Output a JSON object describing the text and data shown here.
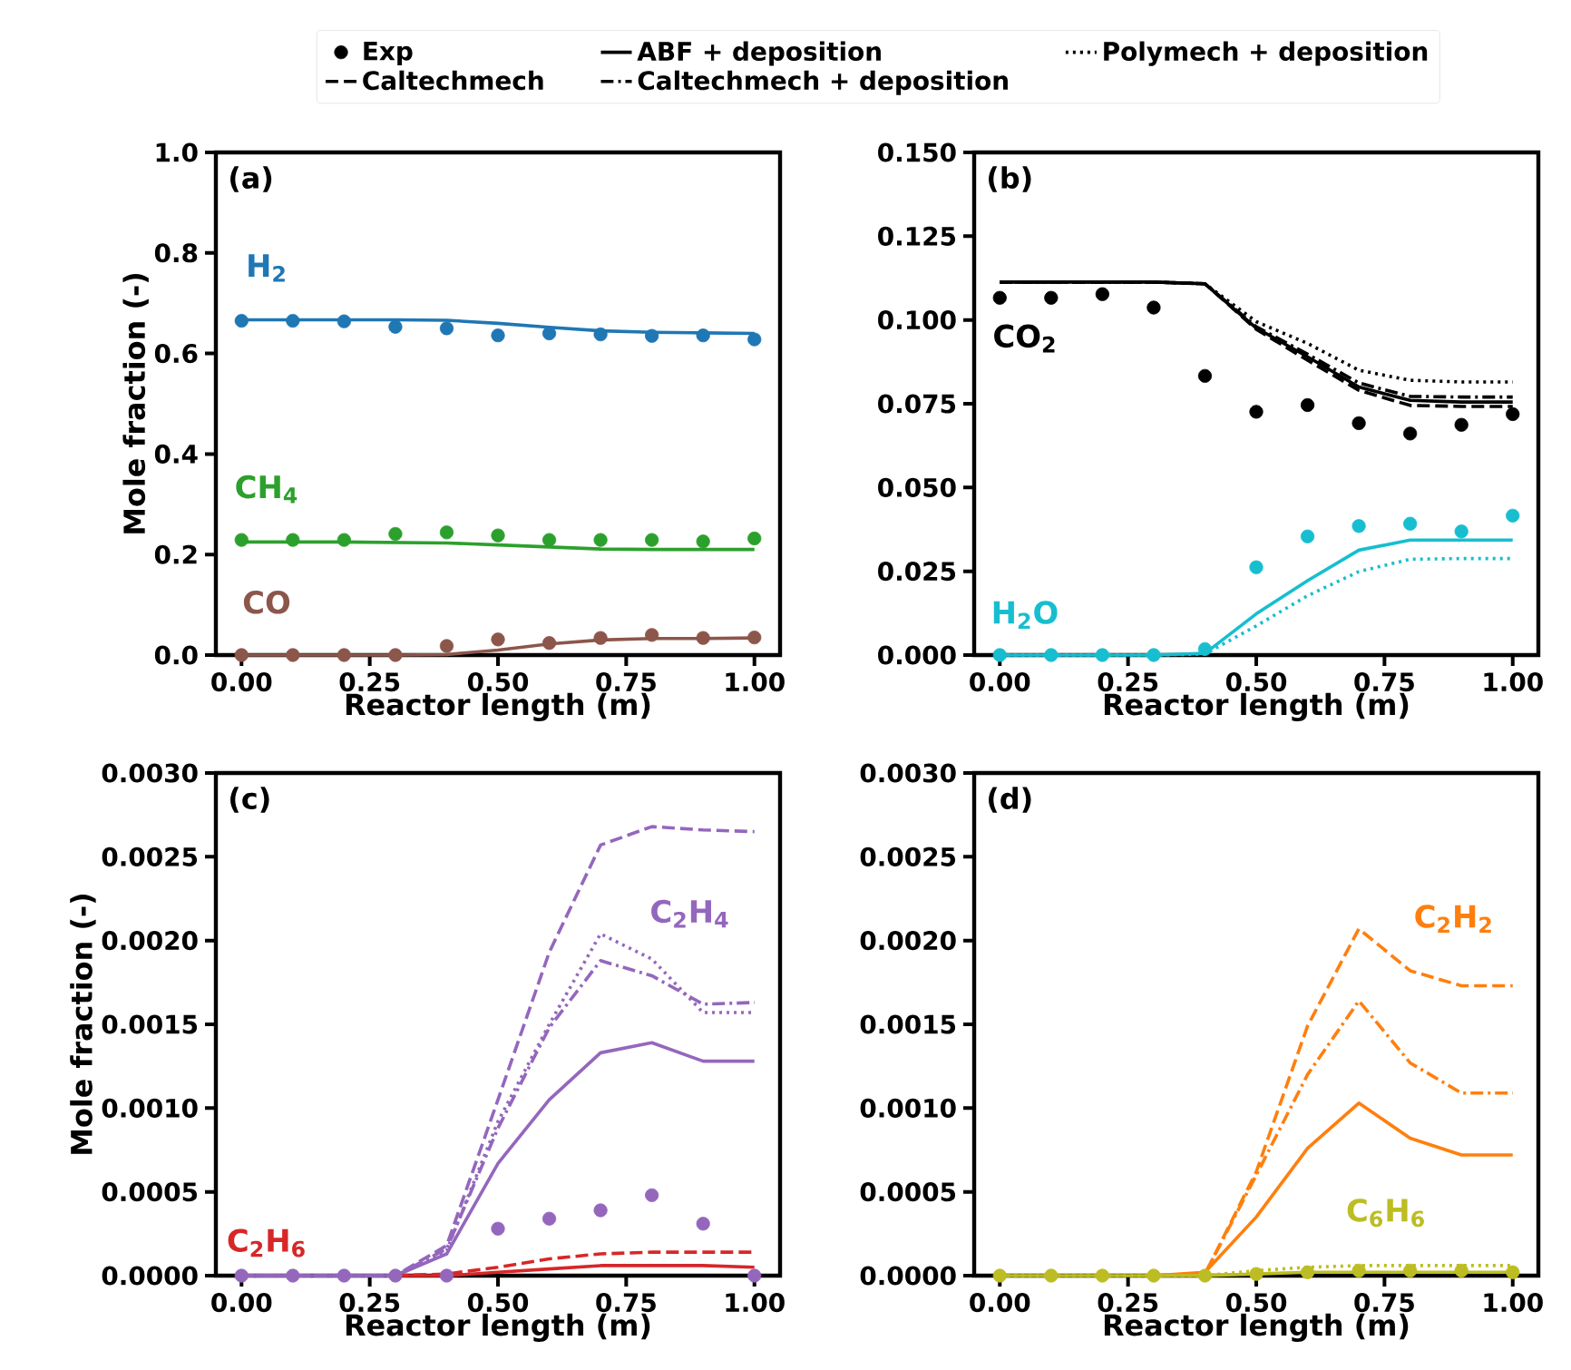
{
  "chart_data": [
    {
      "type": "line",
      "xlabel": "Reactor length (m)",
      "ylabel": "Mole fraction (-)",
      "x": [
        0,
        0.1,
        0.2,
        0.3,
        0.4,
        0.5,
        0.6,
        0.7,
        0.8,
        0.9,
        1.0
      ],
      "xlim": [
        -0.05,
        1.05
      ],
      "ylim": [
        0,
        1.0
      ],
      "xticks": [
        {
          "value": 0,
          "label": "0.00"
        },
        {
          "value": 0.25,
          "label": "0.25"
        },
        {
          "value": 0.5,
          "label": "0.50"
        },
        {
          "value": 0.75,
          "label": "0.75"
        },
        {
          "value": 1.0,
          "label": "1.00"
        }
      ],
      "yticks": [
        {
          "value": 0,
          "label": "0.0"
        },
        {
          "value": 0.2,
          "label": "0.2"
        },
        {
          "value": 0.4,
          "label": "0.4"
        },
        {
          "value": 0.6,
          "label": "0.6"
        },
        {
          "value": 0.8,
          "label": "0.8"
        },
        {
          "value": 1.0,
          "label": "1.0"
        }
      ],
      "annotations": [
        "(a)",
        "H$_{2}$",
        "CH$_{4}$",
        "CO"
      ],
      "series": [
        {
          "type": "scatter",
          "color": "#1f77b4",
          "values": [
            0.665,
            0.665,
            0.664,
            0.653,
            0.65,
            0.636,
            0.64,
            0.638,
            0.635,
            0.636,
            0.628
          ]
        },
        {
          "line_style": "solid",
          "color": "#1f77b4",
          "values": [
            0.667,
            0.667,
            0.667,
            0.667,
            0.666,
            0.66,
            0.652,
            0.645,
            0.642,
            0.641,
            0.64
          ]
        },
        {
          "type": "scatter",
          "color": "#2ca02c",
          "values": [
            0.229,
            0.229,
            0.229,
            0.241,
            0.244,
            0.238,
            0.229,
            0.229,
            0.229,
            0.226,
            0.232
          ]
        },
        {
          "line_style": "solid",
          "color": "#2ca02c",
          "values": [
            0.225,
            0.225,
            0.225,
            0.224,
            0.223,
            0.219,
            0.215,
            0.211,
            0.21,
            0.21,
            0.21
          ]
        },
        {
          "type": "scatter",
          "color": "#8c564b",
          "values": [
            0,
            0,
            0,
            0,
            0.018,
            0.031,
            0.024,
            0.034,
            0.04,
            0.034,
            0.035
          ]
        },
        {
          "line_style": "solid",
          "color": "#8c564b",
          "values": [
            0,
            0,
            0,
            0,
            0.001,
            0.01,
            0.022,
            0.03,
            0.033,
            0.033,
            0.034
          ]
        }
      ]
    },
    {
      "type": "line",
      "xlabel": "Reactor length (m)",
      "legend": "top",
      "x": [
        0,
        0.1,
        0.2,
        0.3,
        0.4,
        0.5,
        0.6,
        0.7,
        0.8,
        0.9,
        1.0
      ],
      "xlim": [
        -0.05,
        1.05
      ],
      "ylim": [
        0,
        0.15
      ],
      "xticks": [
        {
          "value": 0,
          "label": "0.00"
        },
        {
          "value": 0.25,
          "label": "0.25"
        },
        {
          "value": 0.5,
          "label": "0.50"
        },
        {
          "value": 0.75,
          "label": "0.75"
        },
        {
          "value": 1.0,
          "label": "1.00"
        }
      ],
      "yticks": [
        {
          "value": 0,
          "label": "0.000"
        },
        {
          "value": 0.025,
          "label": "0.025"
        },
        {
          "value": 0.05,
          "label": "0.050"
        },
        {
          "value": 0.075,
          "label": "0.075"
        },
        {
          "value": 0.1,
          "label": "0.100"
        },
        {
          "value": 0.125,
          "label": "0.125"
        },
        {
          "value": 0.15,
          "label": "0.150"
        }
      ],
      "annotations": [
        "(b)",
        "CO$_{2}$",
        "H$_{2}$O"
      ],
      "series": [
        {
          "name": "Exp",
          "type": "scatter",
          "color": "#000000",
          "values": [
            0.1066,
            0.1066,
            0.1077,
            0.1037,
            0.0833,
            0.0726,
            0.0746,
            0.0692,
            0.0661,
            0.0687,
            0.0719
          ]
        },
        {
          "name": "ABF + deposition",
          "line_style": "solid",
          "color": "#000000",
          "values": [
            0.1113,
            0.1113,
            0.1113,
            0.1113,
            0.1108,
            0.0976,
            0.089,
            0.08,
            0.076,
            0.0755,
            0.0755
          ]
        },
        {
          "name": "Polymech + deposition",
          "line_style": "dotted",
          "color": "#000000",
          "values": [
            0.1113,
            0.1113,
            0.1113,
            0.1113,
            0.1108,
            0.0995,
            0.093,
            0.085,
            0.082,
            0.0815,
            0.0815
          ]
        },
        {
          "name": "Caltechmech",
          "line_style": "dashed",
          "color": "#000000",
          "values": [
            0.1113,
            0.1113,
            0.1113,
            0.1113,
            0.1108,
            0.0972,
            0.088,
            0.079,
            0.0745,
            0.0742,
            0.0742
          ]
        },
        {
          "name": "Caltechmech + deposition",
          "line_style": "dashdot",
          "color": "#000000",
          "values": [
            0.1113,
            0.1113,
            0.1113,
            0.1113,
            0.1108,
            0.098,
            0.0898,
            0.0812,
            0.0772,
            0.077,
            0.077
          ]
        },
        {
          "type": "scatter",
          "color": "#17becf",
          "values": [
            0,
            0,
            0,
            0,
            0.0018,
            0.0262,
            0.0354,
            0.0385,
            0.0392,
            0.0369,
            0.0416
          ]
        },
        {
          "line_style": "solid",
          "color": "#17becf",
          "values": [
            0,
            0,
            0,
            0,
            0.0005,
            0.0123,
            0.0222,
            0.0313,
            0.0343,
            0.0343,
            0.0343
          ]
        },
        {
          "line_style": "dotted",
          "color": "#17becf",
          "values": [
            0,
            0,
            0,
            0,
            0.0003,
            0.0087,
            0.0177,
            0.0249,
            0.0286,
            0.0288,
            0.0288
          ]
        }
      ]
    },
    {
      "type": "line",
      "xlabel": "Reactor length (m)",
      "ylabel": "Mole fraction (-)",
      "x": [
        0,
        0.1,
        0.2,
        0.3,
        0.4,
        0.5,
        0.6,
        0.7,
        0.8,
        0.9,
        1.0
      ],
      "xlim": [
        -0.05,
        1.05
      ],
      "ylim": [
        0,
        0.003
      ],
      "xticks": [
        {
          "value": 0,
          "label": "0.00"
        },
        {
          "value": 0.25,
          "label": "0.25"
        },
        {
          "value": 0.5,
          "label": "0.50"
        },
        {
          "value": 0.75,
          "label": "0.75"
        },
        {
          "value": 1.0,
          "label": "1.00"
        }
      ],
      "yticks": [
        {
          "value": 0,
          "label": "0.0000"
        },
        {
          "value": 0.0005,
          "label": "0.0005"
        },
        {
          "value": 0.001,
          "label": "0.0010"
        },
        {
          "value": 0.0015,
          "label": "0.0015"
        },
        {
          "value": 0.002,
          "label": "0.0020"
        },
        {
          "value": 0.0025,
          "label": "0.0025"
        },
        {
          "value": 0.003,
          "label": "0.0030"
        }
      ],
      "annotations": [
        "(c)",
        "C$_{2}$H$_{4}$",
        "C$_{2}$H$_{6}$"
      ],
      "series": [
        {
          "type": "scatter",
          "color": "#9467bd",
          "values": [
            0,
            0,
            0,
            0,
            0,
            0.00028,
            0.00034,
            0.00039,
            0.00048,
            0.00031,
            0
          ]
        },
        {
          "line_style": "solid",
          "color": "#9467bd",
          "values": [
            0,
            0,
            0,
            0,
            0.00013,
            0.00067,
            0.00105,
            0.00133,
            0.00139,
            0.00128,
            0.00128
          ]
        },
        {
          "line_style": "dashed",
          "color": "#9467bd",
          "values": [
            0,
            0,
            0,
            0,
            0.00018,
            0.00105,
            0.00193,
            0.00257,
            0.00268,
            0.00266,
            0.00265
          ]
        },
        {
          "line_style": "dotted",
          "color": "#9467bd",
          "values": [
            0,
            0,
            0,
            0,
            0.00015,
            0.00092,
            0.0015,
            0.00204,
            0.00189,
            0.00157,
            0.00157
          ]
        },
        {
          "line_style": "dashdot",
          "color": "#9467bd",
          "values": [
            0,
            0,
            0,
            0,
            0.00016,
            0.00088,
            0.00148,
            0.00188,
            0.00179,
            0.00162,
            0.00163
          ]
        },
        {
          "line_style": "solid",
          "color": "#d62728",
          "values": [
            null,
            null,
            null,
            0,
            0,
            2e-05,
            4e-05,
            6e-05,
            6e-05,
            6e-05,
            5e-05
          ]
        },
        {
          "line_style": "dashed",
          "color": "#d62728",
          "values": [
            null,
            null,
            null,
            0,
            1e-05,
            5e-05,
            0.0001,
            0.00013,
            0.00014,
            0.00014,
            0.00014
          ]
        }
      ]
    },
    {
      "type": "line",
      "xlabel": "Reactor length (m)",
      "x": [
        0,
        0.1,
        0.2,
        0.3,
        0.4,
        0.5,
        0.6,
        0.7,
        0.8,
        0.9,
        1.0
      ],
      "xlim": [
        -0.05,
        1.05
      ],
      "ylim": [
        0,
        0.003
      ],
      "xticks": [
        {
          "value": 0,
          "label": "0.00"
        },
        {
          "value": 0.25,
          "label": "0.25"
        },
        {
          "value": 0.5,
          "label": "0.50"
        },
        {
          "value": 0.75,
          "label": "0.75"
        },
        {
          "value": 1.0,
          "label": "1.00"
        }
      ],
      "yticks": [
        {
          "value": 0,
          "label": "0.0000"
        },
        {
          "value": 0.0005,
          "label": "0.0005"
        },
        {
          "value": 0.001,
          "label": "0.0010"
        },
        {
          "value": 0.0015,
          "label": "0.0015"
        },
        {
          "value": 0.002,
          "label": "0.0020"
        },
        {
          "value": 0.0025,
          "label": "0.0025"
        },
        {
          "value": 0.003,
          "label": "0.0030"
        }
      ],
      "annotations": [
        "(d)",
        "C$_{2}$H$_{2}$",
        "C$_{6}$H$_{6}$"
      ],
      "series": [
        {
          "line_style": "solid",
          "color": "#ff7f0e",
          "values": [
            null,
            null,
            null,
            0,
            2e-05,
            0.00035,
            0.00076,
            0.00103,
            0.00082,
            0.00072,
            0.00072
          ]
        },
        {
          "line_style": "dashed",
          "color": "#ff7f0e",
          "values": [
            null,
            null,
            null,
            0,
            1e-05,
            0.00062,
            0.00149,
            0.00207,
            0.00182,
            0.00173,
            0.00173
          ]
        },
        {
          "line_style": "dashdot",
          "color": "#ff7f0e",
          "values": [
            null,
            null,
            null,
            0,
            1e-05,
            0.0006,
            0.0012,
            0.00164,
            0.00127,
            0.00109,
            0.00109
          ]
        },
        {
          "type": "scatter",
          "color": "#bcbd22",
          "values": [
            0,
            0,
            0,
            0,
            0,
            1e-05,
            2e-05,
            3e-05,
            3e-05,
            3e-05,
            2e-05
          ]
        },
        {
          "line_style": "solid",
          "color": "#bcbd22",
          "values": [
            0,
            0,
            0,
            0,
            0,
            1e-05,
            2e-05,
            2e-05,
            2e-05,
            2e-05,
            2e-05
          ]
        },
        {
          "line_style": "dotted",
          "color": "#bcbd22",
          "values": [
            0,
            0,
            0,
            0,
            0,
            3e-05,
            5e-05,
            6e-05,
            6e-05,
            6e-05,
            6e-05
          ]
        }
      ]
    }
  ]
}
